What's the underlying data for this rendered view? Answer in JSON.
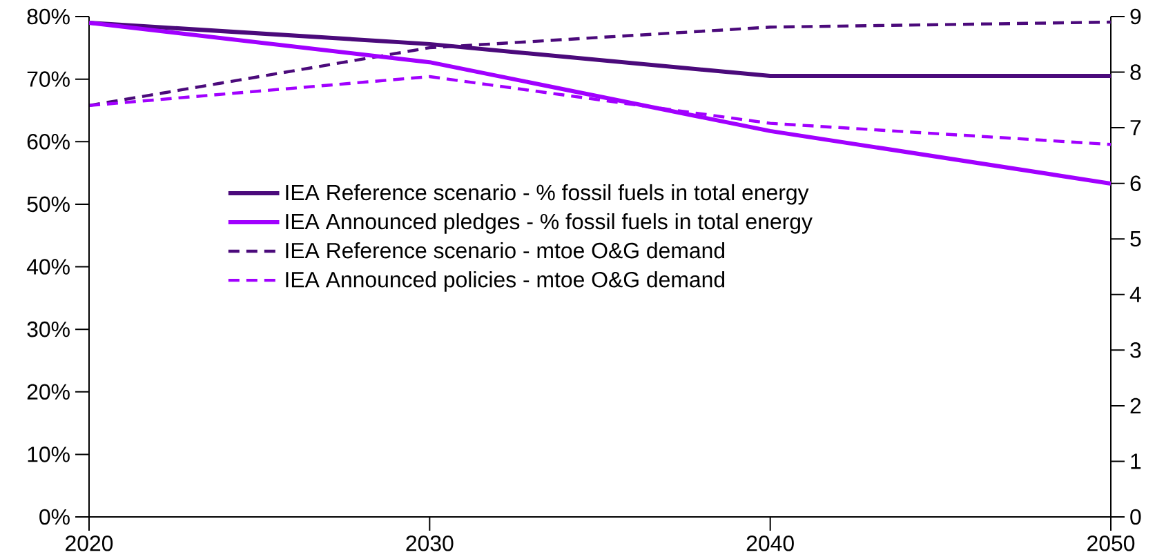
{
  "chart_data": {
    "type": "line",
    "x": [
      2020,
      2030,
      2040,
      2050
    ],
    "xlim": [
      2020,
      2050
    ],
    "xticks": [
      2020,
      2030,
      2040,
      2050
    ],
    "ylim": [
      0,
      80
    ],
    "yticks": [
      {
        "value": 0,
        "label": "0%"
      },
      {
        "value": 10,
        "label": "10%"
      },
      {
        "value": 20,
        "label": "20%"
      },
      {
        "value": 30,
        "label": "30%"
      },
      {
        "value": 40,
        "label": "40%"
      },
      {
        "value": 50,
        "label": "50%"
      },
      {
        "value": 60,
        "label": "60%"
      },
      {
        "value": 70,
        "label": "70%"
      },
      {
        "value": 80,
        "label": "80%"
      }
    ],
    "y2lim": [
      0,
      9
    ],
    "y2ticks": [
      0,
      1,
      2,
      3,
      4,
      5,
      6,
      7,
      8,
      9
    ],
    "series": [
      {
        "name": "IEA Reference scenario - % fossil fuels in total energy",
        "color": "#4b0a7b",
        "line_style": "solid",
        "values": [
          79,
          75.6,
          70.5,
          70.5
        ]
      },
      {
        "name": "IEA Announced pledges - % fossil fuels in total energy",
        "color": "#a100ff",
        "line_style": "solid",
        "values": [
          79,
          72.7,
          61.7,
          53.3
        ]
      },
      {
        "name": "IEA Reference scenario - mtoe O&G demand",
        "color": "#4b0a7b",
        "line_style": "dashed",
        "axis": "y2",
        "values": [
          7.4,
          8.44,
          8.81,
          8.9
        ]
      },
      {
        "name": "IEA Announced policies - mtoe O&G demand",
        "color": "#a100ff",
        "line_style": "dashed",
        "axis": "y2",
        "values": [
          7.4,
          7.92,
          7.08,
          6.7
        ]
      }
    ],
    "grid": false,
    "legend": "center",
    "marker": "none"
  }
}
